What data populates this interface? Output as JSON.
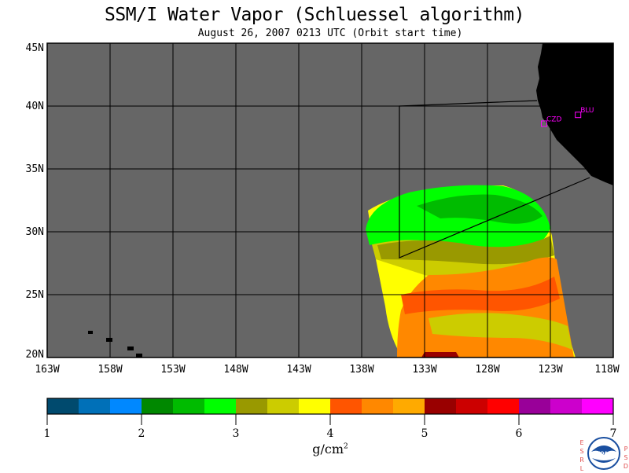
{
  "title": "SSM/I Water Vapor (Schluessel algorithm)",
  "subtitle": "August 26, 2007  0213 UTC  (Orbit start time)",
  "map": {
    "lat_labels": [
      "45N",
      "40N",
      "35N",
      "30N",
      "25N",
      "20N"
    ],
    "lon_labels": [
      "163W",
      "158W",
      "153W",
      "148W",
      "143W",
      "138W",
      "133W",
      "128W",
      "123W",
      "118W"
    ],
    "lat_range": [
      20,
      45
    ],
    "lon_range": [
      -163,
      -118
    ],
    "background_color": "#666666",
    "land_color": "#000000",
    "stations": [
      {
        "label": "CZD",
        "lon": -123.5,
        "lat": 38.6
      },
      {
        "label": "BLU",
        "lon": -120.8,
        "lat": 39.3
      }
    ],
    "station_color": "#ff00ff"
  },
  "colorbar": {
    "colors": [
      "#004a6e",
      "#0070b8",
      "#0088ff",
      "#008800",
      "#00bb00",
      "#00ff00",
      "#999900",
      "#cccc00",
      "#ffff00",
      "#ff5500",
      "#ff8800",
      "#ffaa00",
      "#990000",
      "#cc0000",
      "#ff0000",
      "#990099",
      "#cc00cc",
      "#ff00ff"
    ],
    "ticks": [
      "1",
      "2",
      "3",
      "4",
      "5",
      "6",
      "7"
    ],
    "units": "g/cm",
    "units_sup": "2"
  },
  "logo": {
    "left_text": "ESRL",
    "right_text": "PSD",
    "center_text": "NOAA"
  }
}
